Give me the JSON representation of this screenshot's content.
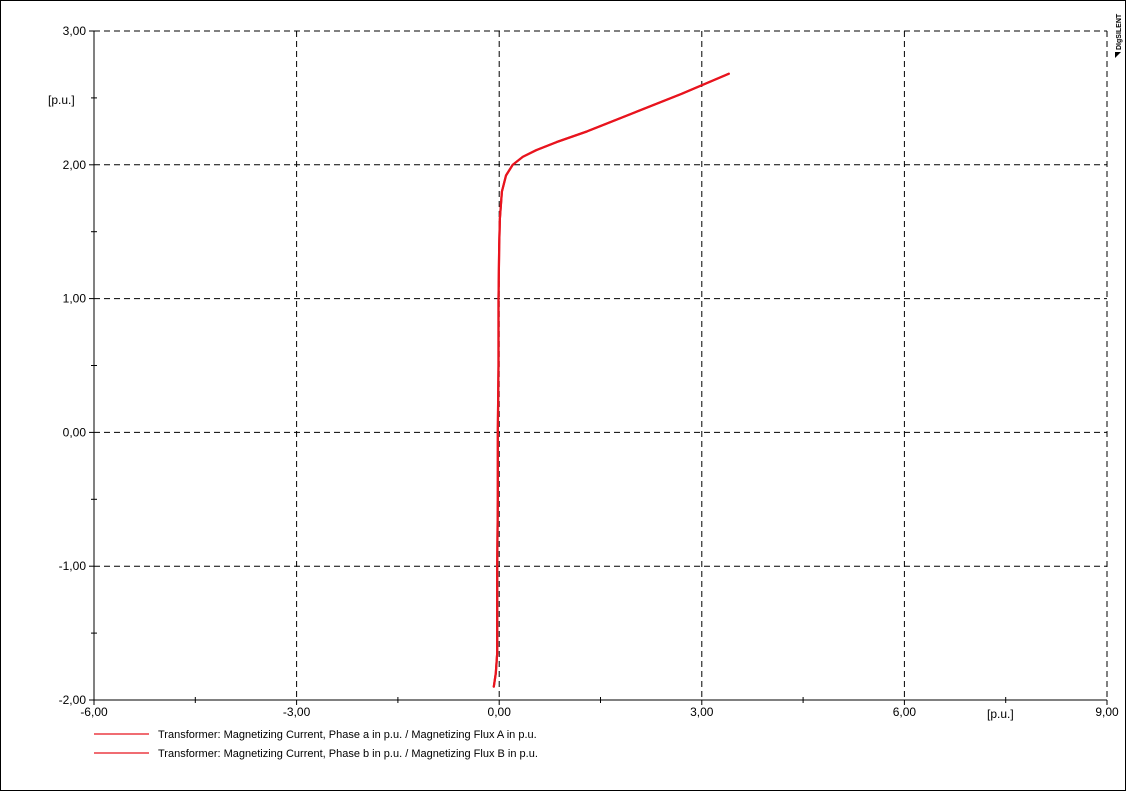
{
  "chart_data": {
    "type": "line",
    "x_unit_label": "[p.u.]",
    "y_unit_label": "[p.u.]",
    "xlim": [
      -6,
      9
    ],
    "ylim": [
      -2,
      3
    ],
    "x_ticks": [
      {
        "value": -6,
        "label": "-6,00"
      },
      {
        "value": -3,
        "label": "-3,00"
      },
      {
        "value": 0,
        "label": "0,00"
      },
      {
        "value": 3,
        "label": "3,00"
      },
      {
        "value": 6,
        "label": "6,00"
      },
      {
        "value": 9,
        "label": "9,00"
      }
    ],
    "y_ticks": [
      {
        "value": -2,
        "label": "-2,00"
      },
      {
        "value": -1,
        "label": "-1,00"
      },
      {
        "value": 0,
        "label": "0,00"
      },
      {
        "value": 1,
        "label": "1,00"
      },
      {
        "value": 2,
        "label": "2,00"
      },
      {
        "value": 3,
        "label": "3,00"
      }
    ],
    "grid": true,
    "legend_position": "bottom-left",
    "series": [
      {
        "name": "Transformer: Magnetizing Current, Phase a in p.u. / Magnetizing Flux A in p.u.",
        "color": "#e8141e",
        "x": [
          -0.08,
          -0.05,
          -0.03,
          -0.03,
          -0.02,
          -0.02,
          -0.01,
          -0.01,
          0.0,
          0.01,
          0.04,
          0.1,
          0.2,
          0.35,
          0.55,
          0.85,
          1.3,
          2.0,
          2.7,
          3.4
        ],
        "y": [
          -1.9,
          -1.8,
          -1.65,
          -1.0,
          -0.5,
          0.0,
          0.5,
          1.0,
          1.4,
          1.6,
          1.8,
          1.92,
          2.0,
          2.06,
          2.11,
          2.17,
          2.25,
          2.39,
          2.53,
          2.68
        ]
      },
      {
        "name": "Transformer: Magnetizing Current, Phase b in p.u. / Magnetizing Flux B in p.u.",
        "color": "#e8141e",
        "x": [
          -0.08,
          -0.05,
          -0.03,
          -0.03,
          -0.02,
          -0.02,
          -0.01,
          -0.01,
          0.0,
          0.01,
          0.04,
          0.1,
          0.2,
          0.35,
          0.55,
          0.85,
          1.3,
          2.0,
          2.7,
          3.4
        ],
        "y": [
          -1.9,
          -1.8,
          -1.65,
          -1.0,
          -0.5,
          0.0,
          0.5,
          1.0,
          1.4,
          1.6,
          1.8,
          1.92,
          2.0,
          2.06,
          2.11,
          2.17,
          2.25,
          2.39,
          2.53,
          2.68
        ]
      }
    ]
  },
  "watermark": "DIgSILENT"
}
